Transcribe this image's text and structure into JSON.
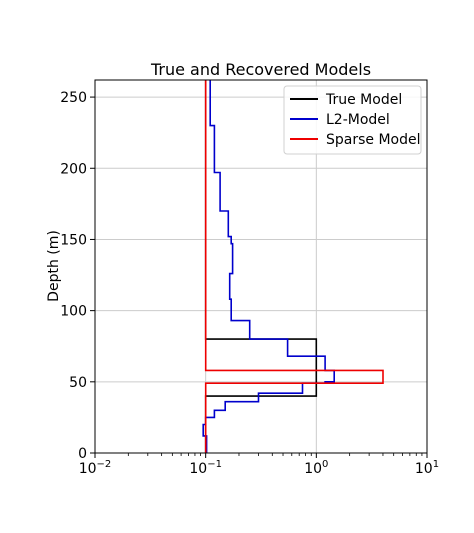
{
  "chart_data": {
    "type": "line",
    "title": "True and Recovered Models",
    "ylabel": "Depth (m)",
    "xlabel": "",
    "xscale": "log",
    "xlim": [
      0.01,
      10
    ],
    "ylim": [
      0,
      262
    ],
    "grid": true,
    "legend_position": "top-right",
    "x_ticks": [
      {
        "value": 0.01,
        "base": "10",
        "exp": "−2"
      },
      {
        "value": 0.1,
        "base": "10",
        "exp": "−1"
      },
      {
        "value": 1,
        "base": "10",
        "exp": "0"
      },
      {
        "value": 10,
        "base": "10",
        "exp": "1"
      }
    ],
    "y_ticks": [
      0,
      50,
      100,
      150,
      200,
      250
    ],
    "series": [
      {
        "name": "True Model",
        "color": "#000000",
        "x": [
          0.1,
          0.1,
          1.0,
          1.0,
          0.1,
          0.1
        ],
        "y": [
          262,
          80,
          80,
          40,
          40,
          0
        ]
      },
      {
        "name": "L2-Model",
        "color": "#0000cc",
        "x": [
          0.11,
          0.11,
          0.12,
          0.12,
          0.135,
          0.135,
          0.16,
          0.16,
          0.17,
          0.17,
          0.175,
          0.175,
          0.165,
          0.165,
          0.17,
          0.17,
          0.25,
          0.25,
          0.55,
          0.55,
          1.2,
          1.2,
          1.45,
          1.45,
          1.2,
          1.2,
          0.75,
          0.75,
          0.3,
          0.3,
          0.15,
          0.15,
          0.12,
          0.12,
          0.1,
          0.1,
          0.095,
          0.095,
          0.102,
          0.102
        ],
        "y": [
          262,
          230,
          230,
          197,
          197,
          170,
          170,
          152,
          152,
          147,
          147,
          126,
          126,
          108,
          108,
          93,
          93,
          80,
          80,
          68,
          68,
          58,
          58,
          50,
          50,
          49,
          49,
          42,
          42,
          36,
          36,
          30,
          30,
          25,
          25,
          20,
          20,
          12,
          12,
          0
        ]
      },
      {
        "name": "Sparse Model",
        "color": "#ee0000",
        "x": [
          0.1,
          0.1,
          4.0,
          4.0,
          0.1,
          0.1
        ],
        "y": [
          262,
          58,
          58,
          49,
          49,
          0
        ]
      }
    ]
  }
}
